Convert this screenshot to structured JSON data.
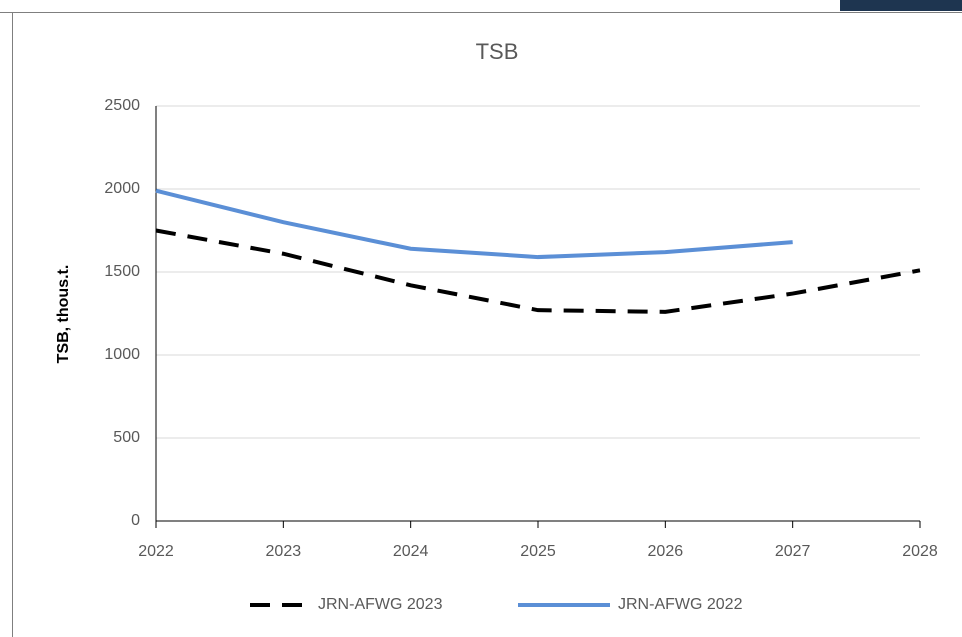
{
  "chart_data": {
    "type": "line",
    "title": "TSB",
    "y_label": "TSB, thous.t.",
    "categories": [
      "2022",
      "2023",
      "2024",
      "2025",
      "2026",
      "2027",
      "2028"
    ],
    "series": [
      {
        "name": "JRN-AFWG 2023",
        "color": "#000000",
        "dash": true,
        "values": [
          1750,
          1610,
          1420,
          1270,
          1260,
          1370,
          1510
        ]
      },
      {
        "name": "JRN-AFWG 2022",
        "color": "#5b8fd6",
        "dash": false,
        "values": [
          1990,
          1800,
          1640,
          1590,
          1620,
          1680,
          null
        ]
      }
    ],
    "ylim": [
      0,
      2500
    ],
    "yticks": [
      0,
      500,
      1000,
      1500,
      2000,
      2500
    ],
    "grid": true,
    "legend": "bottom"
  }
}
